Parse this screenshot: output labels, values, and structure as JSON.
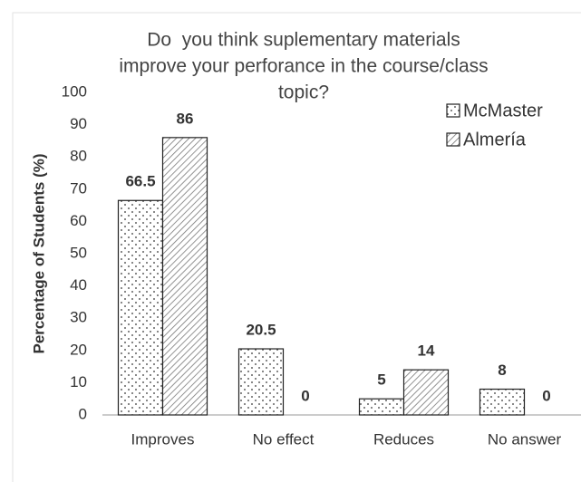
{
  "chart_data": {
    "type": "bar",
    "title": [
      "Do  you think suplementary materials",
      "improve your perforance in the course/class",
      "topic?"
    ],
    "y_label": "Percentage of Students (%)",
    "categories": [
      "Improves",
      "No effect",
      "Reduces",
      "No answer"
    ],
    "series": [
      {
        "name": "McMaster",
        "color": "#ffffff",
        "pattern": "dots",
        "values": [
          66.5,
          20.5,
          5,
          8
        ]
      },
      {
        "name": "Almería",
        "color": "#ffffff",
        "pattern": "hatch",
        "values": [
          86,
          0,
          14,
          0
        ]
      }
    ],
    "ylim": [
      0,
      100
    ],
    "yticks": [
      0,
      10,
      20,
      30,
      40,
      50,
      60,
      70,
      80,
      90,
      100
    ],
    "grid": false,
    "legend": "top-right"
  }
}
